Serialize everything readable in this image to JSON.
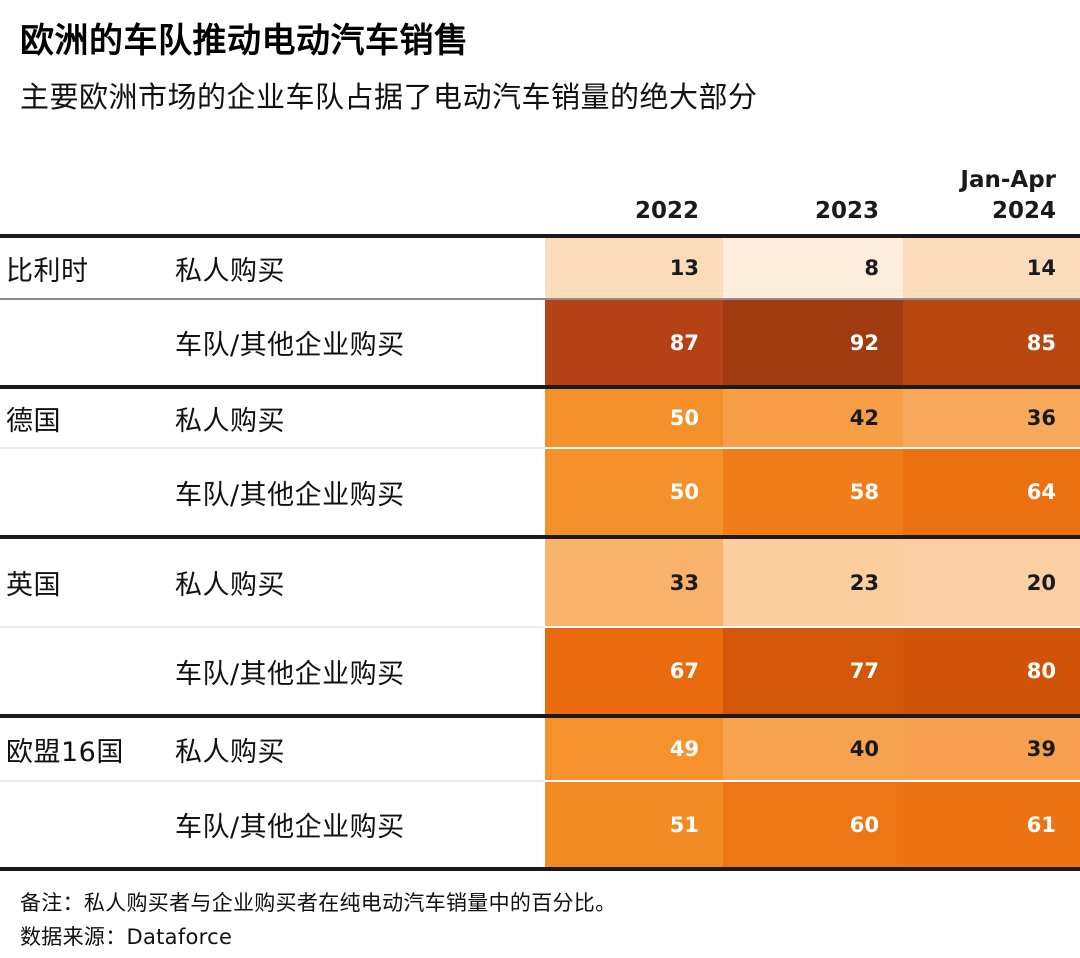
{
  "header": {
    "title": "欧洲的车队推动电动汽车销售",
    "subtitle": "主要欧洲市场的企业车队占据了电动汽车销量的绝大部分"
  },
  "columns": {
    "c2022": "2022",
    "c2023": "2023",
    "c2024_line1": "Jan-Apr",
    "c2024_line2": "2024"
  },
  "colors": {
    "text_dark": "#1a1a1a",
    "text_light": "#ffffff",
    "rule": "#1a1a1a",
    "scale_low": "#fdeddb",
    "scale_high": "#a23a10"
  },
  "table": {
    "rows": [
      {
        "country": "比利时",
        "type": "私人购买",
        "cells": [
          {
            "v": "13",
            "bg": "#fbdcba",
            "fg": "#1a1a1a"
          },
          {
            "v": "8",
            "bg": "#fdeddb",
            "fg": "#1a1a1a"
          },
          {
            "v": "14",
            "bg": "#fbdcba",
            "fg": "#1a1a1a"
          }
        ]
      },
      {
        "country": "",
        "type": "车队/其他企业购买",
        "cells": [
          {
            "v": "87",
            "bg": "#b54217",
            "fg": "#ffffff"
          },
          {
            "v": "92",
            "bg": "#a23a10",
            "fg": "#ffffff"
          },
          {
            "v": "85",
            "bg": "#b7470e",
            "fg": "#ffffff"
          }
        ]
      },
      {
        "country": "德国",
        "type": "私人购买",
        "cells": [
          {
            "v": "50",
            "bg": "#f4912a",
            "fg": "#ffffff"
          },
          {
            "v": "42",
            "bg": "#f79e46",
            "fg": "#1a1a1a"
          },
          {
            "v": "36",
            "bg": "#f8a95b",
            "fg": "#1a1a1a"
          }
        ]
      },
      {
        "country": "",
        "type": "车队/其他企业购买",
        "cells": [
          {
            "v": "50",
            "bg": "#f4912a",
            "fg": "#ffffff"
          },
          {
            "v": "58",
            "bg": "#f07d17",
            "fg": "#ffffff"
          },
          {
            "v": "64",
            "bg": "#ed7010",
            "fg": "#ffffff"
          }
        ]
      },
      {
        "country": "英国",
        "type": "私人购买",
        "cells": [
          {
            "v": "33",
            "bg": "#f9b26b",
            "fg": "#1a1a1a"
          },
          {
            "v": "23",
            "bg": "#fccd9e",
            "fg": "#1a1a1a"
          },
          {
            "v": "20",
            "bg": "#fbcfa3",
            "fg": "#1a1a1a"
          }
        ]
      },
      {
        "country": "",
        "type": "车队/其他企业购买",
        "cells": [
          {
            "v": "67",
            "bg": "#ea6b0e",
            "fg": "#ffffff"
          },
          {
            "v": "77",
            "bg": "#d45709",
            "fg": "#ffffff"
          },
          {
            "v": "80",
            "bg": "#d15308",
            "fg": "#ffffff"
          }
        ]
      },
      {
        "country": "欧盟16国",
        "type": "私人购买",
        "cells": [
          {
            "v": "49",
            "bg": "#f5922c",
            "fg": "#ffffff"
          },
          {
            "v": "40",
            "bg": "#f7a24f",
            "fg": "#1a1a1a"
          },
          {
            "v": "39",
            "bg": "#f7a150",
            "fg": "#1a1a1a"
          }
        ]
      },
      {
        "country": "",
        "type": "车队/其他企业购买",
        "cells": [
          {
            "v": "51",
            "bg": "#f28b21",
            "fg": "#ffffff"
          },
          {
            "v": "60",
            "bg": "#ee7713",
            "fg": "#ffffff"
          },
          {
            "v": "61",
            "bg": "#ed7411",
            "fg": "#ffffff"
          }
        ]
      }
    ]
  },
  "footnote": {
    "note": "备注：私人购买者与企业购买者在纯电动汽车销量中的百分比。",
    "source": "数据来源：Dataforce"
  },
  "chart_data": {
    "type": "heatmap",
    "title": "欧洲的车队推动电动汽车销售",
    "subtitle": "主要欧洲市场的企业车队占据了电动汽车销量的绝大部分",
    "unit": "%",
    "columns": [
      "2022",
      "2023",
      "Jan-Apr 2024"
    ],
    "rows": [
      {
        "country": "比利时",
        "buyer_type": "私人购买",
        "values": [
          13,
          8,
          14
        ]
      },
      {
        "country": "比利时",
        "buyer_type": "车队/其他企业购买",
        "values": [
          87,
          92,
          85
        ]
      },
      {
        "country": "德国",
        "buyer_type": "私人购买",
        "values": [
          50,
          42,
          36
        ]
      },
      {
        "country": "德国",
        "buyer_type": "车队/其他企业购买",
        "values": [
          50,
          58,
          64
        ]
      },
      {
        "country": "英国",
        "buyer_type": "私人购买",
        "values": [
          33,
          23,
          20
        ]
      },
      {
        "country": "英国",
        "buyer_type": "车队/其他企业购买",
        "values": [
          67,
          77,
          80
        ]
      },
      {
        "country": "欧盟16国",
        "buyer_type": "私人购买",
        "values": [
          49,
          40,
          39
        ]
      },
      {
        "country": "欧盟16国",
        "buyer_type": "车队/其他企业购买",
        "values": [
          51,
          60,
          61
        ]
      }
    ],
    "color_scale": "sequential orange: low values light cream, high values dark red-brown",
    "legend_position": "none",
    "note": "备注：私人购买者与企业购买者在纯电动汽车销量中的百分比。",
    "source": "Dataforce"
  }
}
